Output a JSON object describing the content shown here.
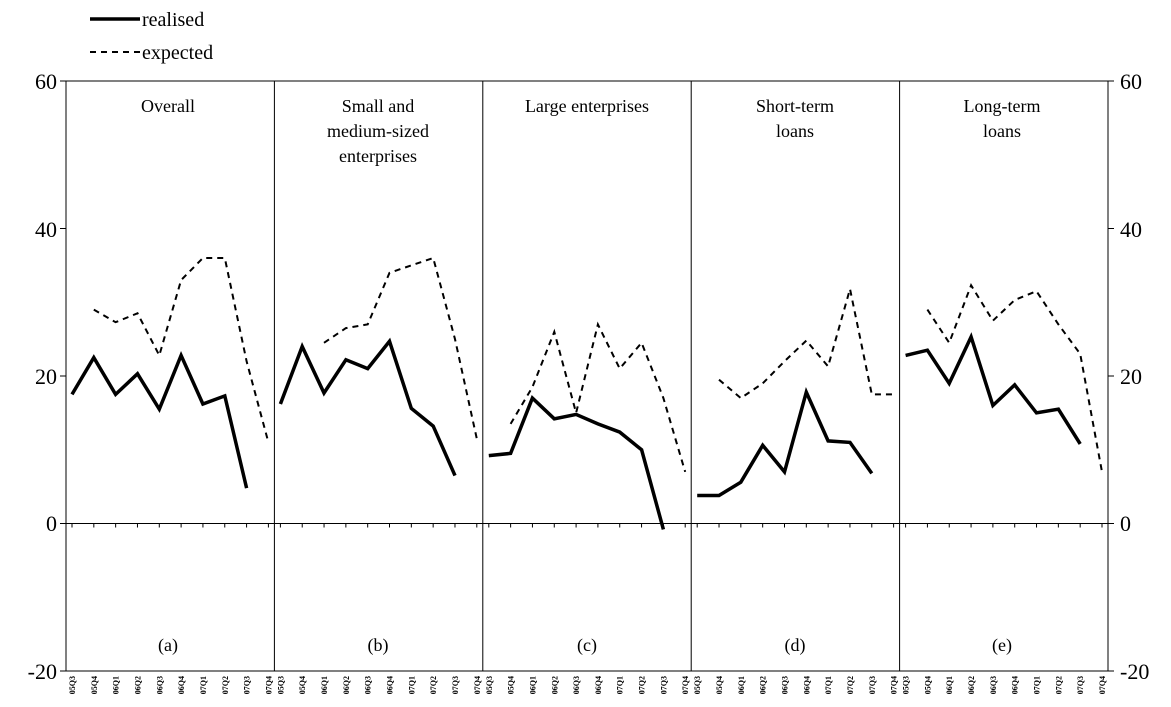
{
  "chart_data": {
    "type": "line",
    "legend": {
      "placement": "top-left",
      "items": [
        {
          "series": "realised",
          "label": "realised"
        },
        {
          "series": "expected",
          "label": "expected"
        }
      ]
    },
    "ylim": [
      -20,
      60
    ],
    "yticks": [
      "60",
      "40",
      "20",
      "0",
      "-20"
    ],
    "yticks_values": [
      60,
      40,
      20,
      0,
      -20
    ],
    "x_tick_labels": [
      "05Q3",
      "05Q4",
      "06Q1",
      "06Q2",
      "06Q3",
      "06Q4",
      "07Q1",
      "07Q2",
      "07Q3",
      "07Q4"
    ],
    "grid": false,
    "panels": [
      {
        "title": "Overall",
        "letter": "(a)",
        "series": [
          {
            "name": "realised",
            "values": [
              17.5,
              22.5,
              17.5,
              20.3,
              15.5,
              22.8,
              16.2,
              17.3,
              4.8,
              null
            ]
          },
          {
            "name": "expected",
            "values": [
              null,
              29.0,
              27.3,
              28.5,
              22.8,
              33.0,
              36.0,
              36.0,
              22.0,
              11.0
            ]
          }
        ]
      },
      {
        "title": "Small and medium-sized enterprises",
        "letter": "(b)",
        "series": [
          {
            "name": "realised",
            "values": [
              16.2,
              24.0,
              17.7,
              22.2,
              21.0,
              24.7,
              15.6,
              13.2,
              6.5,
              null
            ]
          },
          {
            "name": "expected",
            "values": [
              null,
              null,
              24.5,
              26.5,
              27.0,
              34.0,
              35.0,
              36.0,
              25.0,
              11.5
            ]
          }
        ]
      },
      {
        "title": "Large enterprises",
        "letter": "(c)",
        "series": [
          {
            "name": "realised",
            "values": [
              9.2,
              9.5,
              17.0,
              14.2,
              14.8,
              13.5,
              12.4,
              10.0,
              -0.8,
              null
            ]
          },
          {
            "name": "expected",
            "values": [
              null,
              13.5,
              18.5,
              26.0,
              15.0,
              27.0,
              21.0,
              24.5,
              17.0,
              7.0
            ]
          }
        ]
      },
      {
        "title": "Short-term loans",
        "letter": "(d)",
        "series": [
          {
            "name": "realised",
            "values": [
              3.8,
              3.8,
              5.6,
              10.6,
              7.0,
              17.8,
              11.2,
              11.0,
              6.8,
              null
            ]
          },
          {
            "name": "expected",
            "values": [
              null,
              19.5,
              17.0,
              19.0,
              22.0,
              24.8,
              21.3,
              31.8,
              17.5,
              17.5
            ]
          }
        ]
      },
      {
        "title": "Long-term loans",
        "letter": "(e)",
        "series": [
          {
            "name": "realised",
            "values": [
              22.8,
              23.5,
              19.0,
              25.3,
              16.0,
              18.8,
              15.0,
              15.5,
              10.8,
              null
            ]
          },
          {
            "name": "expected",
            "values": [
              null,
              29.0,
              24.5,
              32.3,
              27.5,
              30.3,
              31.5,
              27.0,
              23.0,
              7.0
            ]
          }
        ]
      }
    ]
  }
}
